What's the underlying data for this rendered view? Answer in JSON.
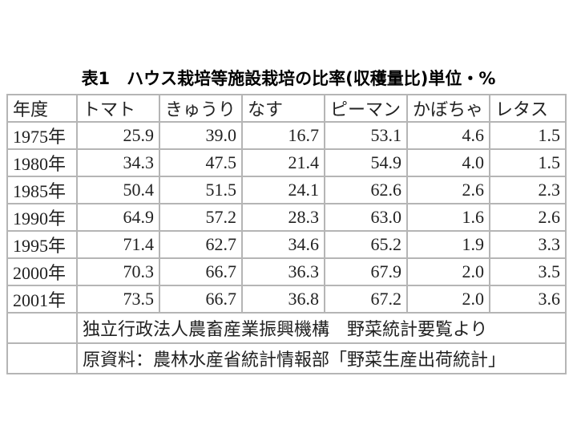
{
  "title": "表1　ハウス栽培等施設栽培の比率(収穫量比)単位・%",
  "table": {
    "header": [
      "年度",
      "トマト",
      "きゅうり",
      "なす",
      "ピーマン",
      "かぼちゃ",
      "レタス"
    ],
    "rows": [
      [
        "1975年",
        "25.9",
        "39.0",
        "16.7",
        "53.1",
        "4.6",
        "1.5"
      ],
      [
        "1980年",
        "34.3",
        "47.5",
        "21.4",
        "54.9",
        "4.0",
        "1.5"
      ],
      [
        "1985年",
        "50.4",
        "51.5",
        "24.1",
        "62.6",
        "2.6",
        "2.3"
      ],
      [
        "1990年",
        "64.9",
        "57.2",
        "28.3",
        "63.0",
        "1.6",
        "2.6"
      ],
      [
        "1995年",
        "71.4",
        "62.7",
        "34.6",
        "65.2",
        "1.9",
        "3.3"
      ],
      [
        "2000年",
        "70.3",
        "66.7",
        "36.3",
        "67.9",
        "2.0",
        "3.5"
      ],
      [
        "2001年",
        "73.5",
        "66.7",
        "36.8",
        "67.2",
        "2.0",
        "3.6"
      ]
    ],
    "notes": [
      "独立行政法人農畜産業振興機構　野菜統計要覧より",
      "原資料：農林水産省統計情報部「野菜生産出荷統計」"
    ]
  }
}
